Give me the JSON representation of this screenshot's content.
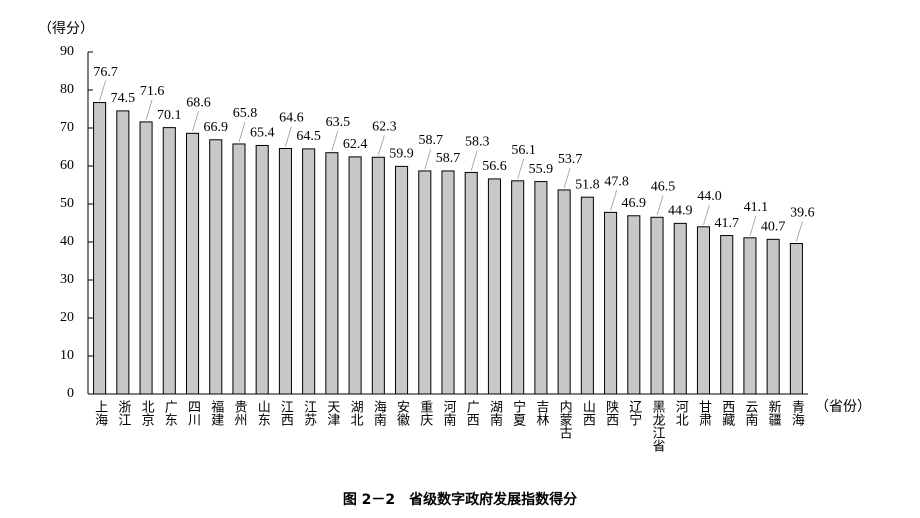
{
  "chart_data": {
    "type": "bar",
    "title": "图 2－2　省级数字政府发展指数得分",
    "y_label": "（得分）",
    "x_label": "（省份）",
    "categories": [
      "上海",
      "浙江",
      "北京",
      "广东",
      "四川",
      "福建",
      "贵州",
      "山东",
      "江西",
      "江苏",
      "天津",
      "湖北",
      "海南",
      "安徽",
      "重庆",
      "河南",
      "广西",
      "湖南",
      "宁夏",
      "吉林",
      "内蒙古",
      "山西",
      "陕西",
      "辽宁",
      "黑龙江省",
      "河北",
      "甘肃",
      "西藏",
      "云南",
      "新疆",
      "青海"
    ],
    "values": [
      76.7,
      74.5,
      71.6,
      70.1,
      68.6,
      66.9,
      65.8,
      65.4,
      64.6,
      64.5,
      63.5,
      62.4,
      62.3,
      59.9,
      58.7,
      58.7,
      58.3,
      56.6,
      56.1,
      55.9,
      53.7,
      51.8,
      47.8,
      46.9,
      46.5,
      44.9,
      44.0,
      41.7,
      41.1,
      40.7,
      39.6
    ],
    "value_labels": [
      "76.7",
      "74.5",
      "71.6",
      "70.1",
      "68.6",
      "66.9",
      "65.8",
      "65.4",
      "64.6",
      "64.5",
      "63.5",
      "62.4",
      "62.3",
      "59.9",
      "58.7",
      "58.7",
      "58.3",
      "56.6",
      "56.1",
      "55.9",
      "53.7",
      "51.8",
      "47.8",
      "46.9",
      "46.5",
      "44.9",
      "44.0",
      "41.7",
      "41.1",
      "40.7",
      "39.6"
    ],
    "color": "#c8c8c8",
    "ylim": [
      0,
      90
    ],
    "yticks": [
      0,
      10,
      20,
      30,
      40,
      50,
      60,
      70,
      80,
      90
    ],
    "grid": false
  }
}
